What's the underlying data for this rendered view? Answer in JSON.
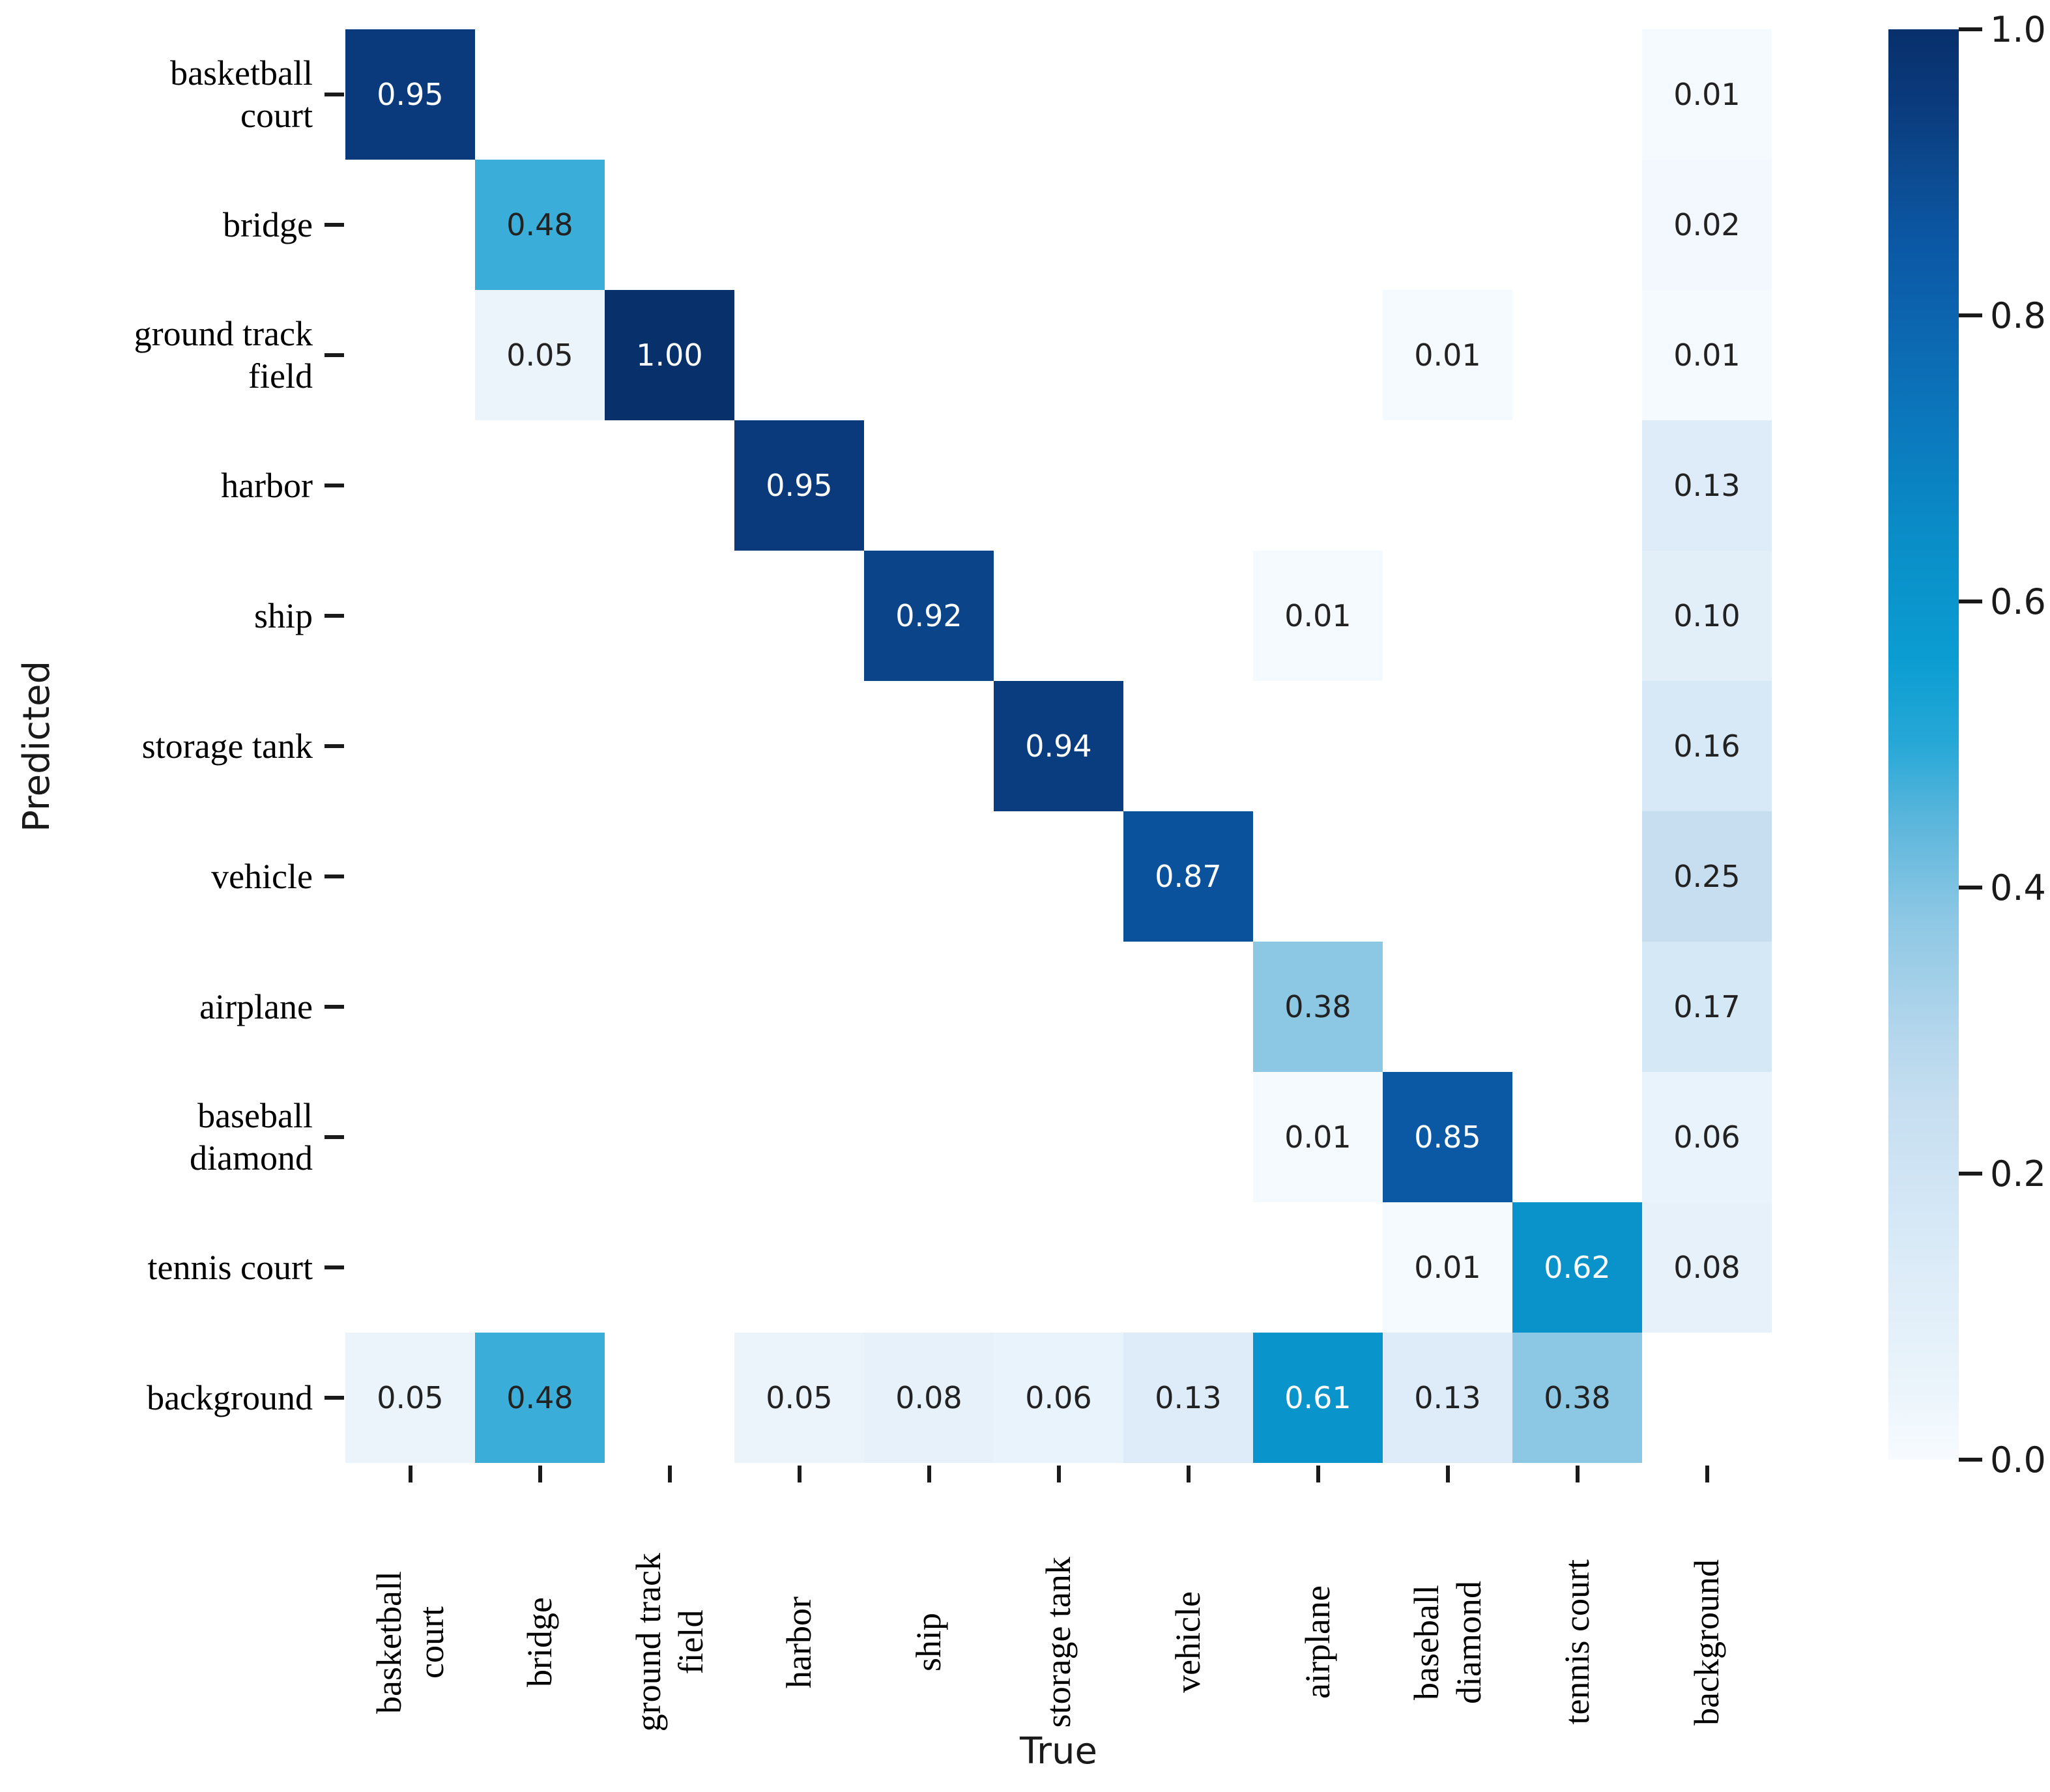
{
  "chart_data": {
    "type": "heatmap",
    "title": "",
    "xlabel": "True",
    "ylabel": "Predicted",
    "categories": [
      "basketball court",
      "bridge",
      "ground track field",
      "harbor",
      "ship",
      "storage tank",
      "vehicle",
      "airplane",
      "baseball diamond",
      "tennis court",
      "background"
    ],
    "x_tick_labels": [
      "basketball\ncourt",
      "bridge",
      "ground track\nfield",
      "harbor",
      "ship",
      "storage tank",
      "vehicle",
      "airplane",
      "baseball\ndiamond",
      "tennis court",
      "background"
    ],
    "y_tick_labels": [
      "basketball\ncourt",
      "bridge",
      "ground track\nfield",
      "harbor",
      "ship",
      "storage tank",
      "vehicle",
      "airplane",
      "baseball\ndiamond",
      "tennis court",
      "background"
    ],
    "matrix": [
      [
        0.95,
        null,
        null,
        null,
        null,
        null,
        null,
        null,
        null,
        null,
        0.01
      ],
      [
        null,
        0.48,
        null,
        null,
        null,
        null,
        null,
        null,
        null,
        null,
        0.02
      ],
      [
        null,
        0.05,
        1.0,
        null,
        null,
        null,
        null,
        null,
        0.01,
        null,
        0.01
      ],
      [
        null,
        null,
        null,
        0.95,
        null,
        null,
        null,
        null,
        null,
        null,
        0.13
      ],
      [
        null,
        null,
        null,
        null,
        0.92,
        null,
        null,
        0.01,
        null,
        null,
        0.1
      ],
      [
        null,
        null,
        null,
        null,
        null,
        0.94,
        null,
        null,
        null,
        null,
        0.16
      ],
      [
        null,
        null,
        null,
        null,
        null,
        null,
        0.87,
        null,
        null,
        null,
        0.25
      ],
      [
        null,
        null,
        null,
        null,
        null,
        null,
        null,
        0.38,
        null,
        null,
        0.17
      ],
      [
        null,
        null,
        null,
        null,
        null,
        null,
        null,
        0.01,
        0.85,
        null,
        0.06
      ],
      [
        null,
        null,
        null,
        null,
        null,
        null,
        null,
        null,
        0.01,
        0.62,
        0.08
      ],
      [
        0.05,
        0.48,
        null,
        0.05,
        0.08,
        0.06,
        0.13,
        0.61,
        0.13,
        0.38,
        null
      ]
    ],
    "value_format": "2dp",
    "axis_ranges": {
      "colorbar_min": 0.0,
      "colorbar_max": 1.0
    },
    "legend_position": "colorbar-right",
    "grid": false,
    "colorbar_tick_labels": [
      "1.0",
      "0.8",
      "0.6",
      "0.4",
      "0.2",
      "0.0"
    ],
    "colormap_stops": [
      [
        0.0,
        "#f7fbff"
      ],
      [
        0.05,
        "#ebf4fb"
      ],
      [
        0.1,
        "#e2eff9"
      ],
      [
        0.15,
        "#d9eaf7"
      ],
      [
        0.2,
        "#cfe4f4"
      ],
      [
        0.25,
        "#c6def0"
      ],
      [
        0.3,
        "#b3d6ec"
      ],
      [
        0.38,
        "#8cc7e4"
      ],
      [
        0.45,
        "#58b5db"
      ],
      [
        0.5,
        "#27a8d7"
      ],
      [
        0.56,
        "#0b9dd2"
      ],
      [
        0.65,
        "#0a8cc7"
      ],
      [
        0.72,
        "#0b79bd"
      ],
      [
        0.8,
        "#0c64ae"
      ],
      [
        0.85,
        "#0b58a5"
      ],
      [
        0.9,
        "#0c4a90"
      ],
      [
        0.95,
        "#0a3a7c"
      ],
      [
        1.0,
        "#08306b"
      ]
    ],
    "text_color_threshold": 0.55,
    "cell_text_colors": {
      "light": "#ffffff",
      "dark": "#222222"
    }
  }
}
